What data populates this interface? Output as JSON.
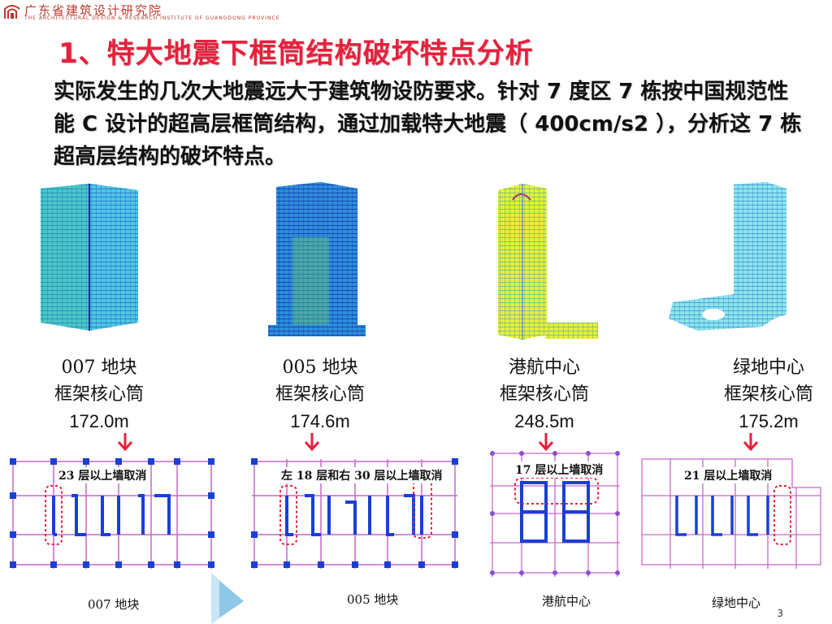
{
  "header": {
    "org_name": "广东省建筑设计研究院",
    "org_name_en": "THE ARCHITECTURAL DESIGN & RESEARCH INSTITUTE OF GUANGDONG PROVINCE"
  },
  "title": "1、特大地震下框筒结构破坏特点分析",
  "intro": "实际发生的几次大地震远大于建筑物设防要求。针对 7 度区 7 栋按中国规范性能 C 设计的超高层框筒结构，通过加载特大地震（ 400cm/s2 ），分析这 7 栋超高层结构的破坏特点。",
  "buildings": [
    {
      "name": "007 地块",
      "type": "框架核心筒",
      "height": "172.0m"
    },
    {
      "name": "005 地块",
      "type": "框架核心筒",
      "height": "174.6m"
    },
    {
      "name": "港航中心",
      "type": "框架核心筒",
      "height": "248.5m"
    },
    {
      "name": "绿地中心",
      "type": "框架核心筒",
      "height": "175.2m"
    }
  ],
  "plans": [
    {
      "note": "23 层以上墙取消",
      "label": "007 地块"
    },
    {
      "note": "左 18 层和右 30 层以上墙取消",
      "label": "005 地块"
    },
    {
      "note": "17 层以上墙取消",
      "label": "港航中心"
    },
    {
      "note": "21 层以上墙取消",
      "label": "绿地中心"
    }
  ],
  "page_number": "3",
  "colors": {
    "title": "#e8203c",
    "arrow": "#e8203c",
    "grid": "#cc66cc",
    "column": "#1a3fd6",
    "wall": "#1a3fd6",
    "highlight": "#e8203c"
  }
}
